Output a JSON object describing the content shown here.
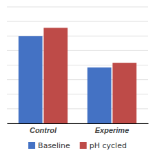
{
  "chart_data": {
    "type": "bar",
    "categories": [
      "Control",
      "Experime"
    ],
    "series": [
      {
        "name": "Baseline",
        "color": "#4472C4",
        "values": [
          75,
          48
        ]
      },
      {
        "name": "pH cycled",
        "color": "#BE4B48",
        "values": [
          82,
          52
        ]
      }
    ],
    "ylim": [
      0,
      100
    ],
    "yticks": [
      0,
      12.5,
      25,
      37.5,
      50,
      62.5,
      75,
      87.5,
      100
    ],
    "grid": true,
    "tick_labels": "x",
    "legend": "bottom"
  }
}
